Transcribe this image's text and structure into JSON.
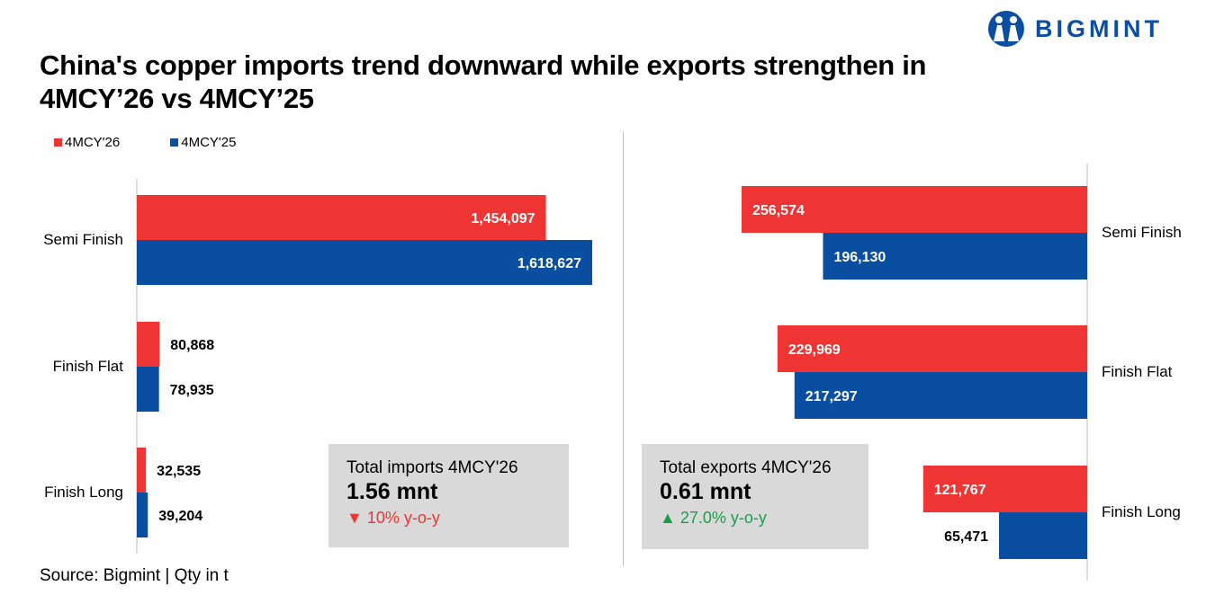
{
  "brand": {
    "name": "BIGMINT",
    "color": "#0a4ea2"
  },
  "title": "China's copper imports trend downward while exports strengthen in 4MCY’26 vs 4MCY’25",
  "legend": [
    {
      "label": "4MCY'26",
      "color": "#ee3533"
    },
    {
      "label": "4MCY'25",
      "color": "#0a4ea2"
    }
  ],
  "chart_data": [
    {
      "type": "bar",
      "orientation": "horizontal",
      "categories": [
        "Semi Finish",
        "Finish Flat",
        "Finish Long"
      ],
      "series": [
        {
          "name": "4MCY'26",
          "values": [
            1454097,
            80868,
            32535
          ],
          "labels": [
            "1,454,097",
            "80,868",
            "32,535"
          ]
        },
        {
          "name": "4MCY'25",
          "values": [
            1618627,
            78935,
            39204
          ],
          "labels": [
            "1,618,627",
            "78,935",
            "39,204"
          ]
        }
      ],
      "xlim": [
        0,
        1618627
      ],
      "direction": "left-to-right"
    },
    {
      "type": "bar",
      "orientation": "horizontal",
      "categories": [
        "Semi Finish",
        "Finish Flat",
        "Finish Long"
      ],
      "series": [
        {
          "name": "4MCY'26",
          "values": [
            256574,
            229969,
            121767
          ],
          "labels": [
            "256,574",
            "229,969",
            "121,767"
          ]
        },
        {
          "name": "4MCY'25",
          "values": [
            196130,
            217297,
            65471
          ],
          "labels": [
            "196,130",
            "217,297",
            "65,471"
          ]
        }
      ],
      "xlim": [
        0,
        256574
      ],
      "direction": "right-to-left"
    }
  ],
  "summaries": [
    {
      "label": "Total imports 4MCY'26",
      "value": "1.56 mnt",
      "arrow": "▼",
      "change": "10% y-o-y",
      "color": "#ee3533"
    },
    {
      "label": "Total exports 4MCY'26",
      "value": "0.61 mnt",
      "arrow": "▲",
      "change": "27.0% y-o-y",
      "color": "#1a9e48"
    }
  ],
  "source": "Source: Bigmint | Qty in t"
}
